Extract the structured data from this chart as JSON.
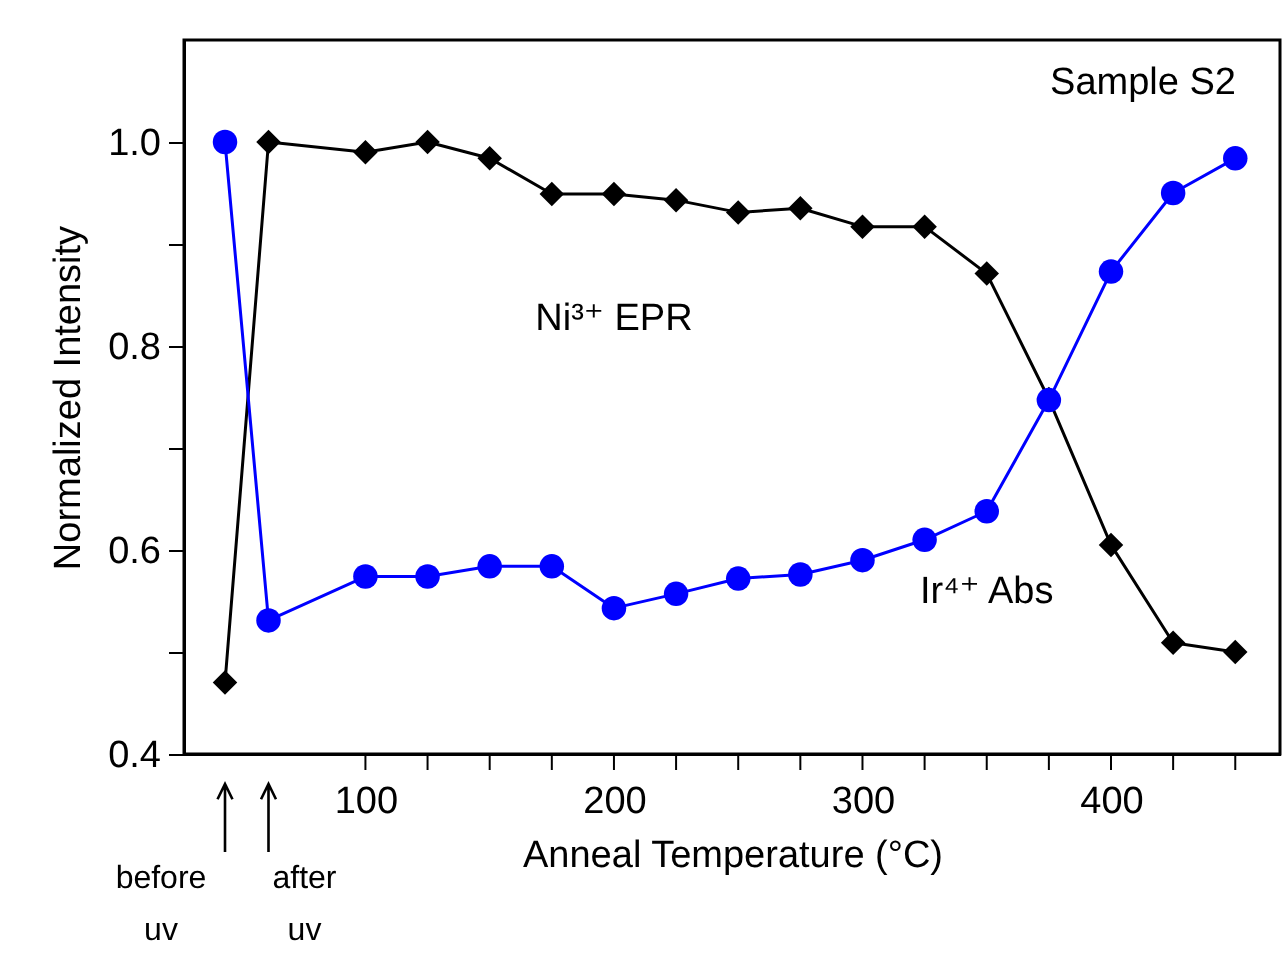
{
  "chart_data": {
    "type": "line",
    "xlabel": "Anneal Temperature (°C)",
    "ylabel": "Normalized Intensity",
    "annotations": [
      "Sample S2",
      "before uv",
      "after uv"
    ],
    "x": [
      43.5,
      61,
      100,
      125,
      150,
      175,
      200,
      225,
      250,
      275,
      300,
      325,
      350,
      375,
      400,
      425,
      450
    ],
    "series": [
      {
        "name": "Ni³⁺ EPR",
        "color": "#000000",
        "marker": "diamond",
        "values": [
          0.47,
          1.0,
          0.99,
          1.0,
          0.984,
          0.949,
          0.949,
          0.943,
          0.931,
          0.935,
          0.917,
          0.917,
          0.871,
          0.748,
          0.605,
          0.509,
          0.5
        ]
      },
      {
        "name": "Ir⁴⁺ Abs",
        "color": "#0000ff",
        "marker": "circle",
        "values": [
          1.0,
          0.531,
          0.574,
          0.574,
          0.584,
          0.584,
          0.543,
          0.557,
          0.572,
          0.576,
          0.59,
          0.61,
          0.638,
          0.747,
          0.873,
          0.95,
          0.984
        ]
      }
    ],
    "xlim": [
      27,
      468
    ],
    "ylim": [
      0.4,
      1.1
    ],
    "xticks": [
      100,
      {
        "value": 125,
        "label": null
      },
      {
        "value": 150,
        "label": null
      },
      {
        "value": 175,
        "label": null
      },
      200,
      {
        "value": 225,
        "label": null
      },
      {
        "value": 250,
        "label": null
      },
      {
        "value": 275,
        "label": null
      },
      300,
      {
        "value": 325,
        "label": null
      },
      {
        "value": 350,
        "label": null
      },
      {
        "value": 375,
        "label": null
      },
      400,
      {
        "value": 425,
        "label": null
      },
      {
        "value": 450,
        "label": null
      }
    ],
    "yticks": [
      {
        "value": 0.4,
        "label": "0.4"
      },
      {
        "value": 0.5,
        "label": null
      },
      {
        "value": 0.6,
        "label": "0.6"
      },
      {
        "value": 0.7,
        "label": null
      },
      {
        "value": 0.8,
        "label": "0.8"
      },
      {
        "value": 0.9,
        "label": null
      },
      {
        "value": 1.0,
        "label": "1.0"
      }
    ],
    "grid": false,
    "line_style": "solid"
  }
}
